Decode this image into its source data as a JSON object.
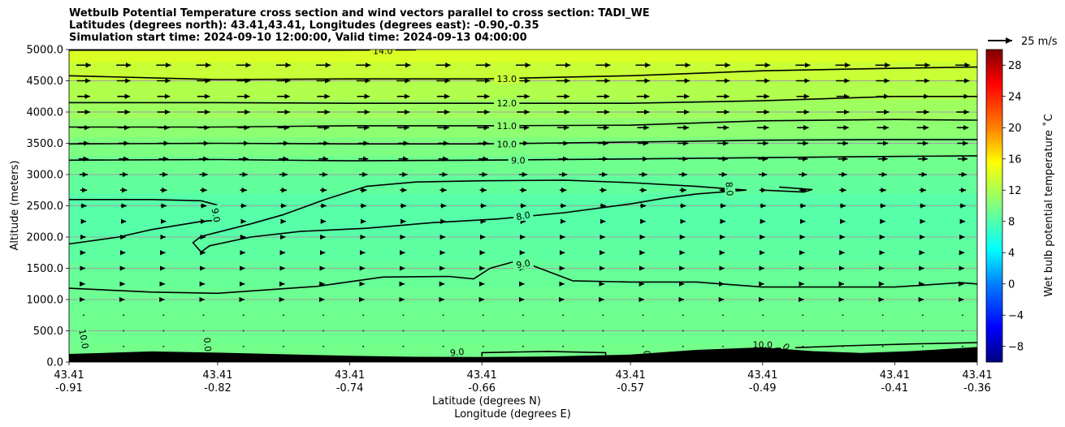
{
  "chart_data": {
    "type": "heatmap",
    "title_lines": [
      "Wetbulb Potential Temperature cross section and wind vectors parallel to cross section: TADI_WE",
      "Latitudes (degrees north): 43.41,43.41, Longitudes (degrees east): -0.90,-0.35",
      "Simulation start time: 2024-09-10 12:00:00, Valid time: 2024-09-13 04:00:00"
    ],
    "xlabel_lat": "Latitude (degrees N)",
    "xlabel_lon": "Longitude (degrees E)",
    "ylabel": "Altitude (meters)",
    "ylim": [
      0,
      5000
    ],
    "yticks": [
      {
        "value": 0,
        "label": "0.0"
      },
      {
        "value": 500,
        "label": "500.0"
      },
      {
        "value": 1000,
        "label": "1000.0"
      },
      {
        "value": 1500,
        "label": "1500.0"
      },
      {
        "value": 2000,
        "label": "2000.0"
      },
      {
        "value": 2500,
        "label": "2500.0"
      },
      {
        "value": 3000,
        "label": "3000.0"
      },
      {
        "value": 3500,
        "label": "3500.0"
      },
      {
        "value": 4000,
        "label": "4000.0"
      },
      {
        "value": 4500,
        "label": "4500.0"
      },
      {
        "value": 5000,
        "label": "5000.0"
      }
    ],
    "xlim": [
      -0.91,
      -0.36
    ],
    "xticks": [
      {
        "lon": -0.91,
        "lat_label": "43.41",
        "lon_label": "-0.91"
      },
      {
        "lon": -0.82,
        "lat_label": "43.41",
        "lon_label": "-0.82"
      },
      {
        "lon": -0.74,
        "lat_label": "43.41",
        "lon_label": "-0.74"
      },
      {
        "lon": -0.66,
        "lat_label": "43.41",
        "lon_label": "-0.66"
      },
      {
        "lon": -0.57,
        "lat_label": "43.41",
        "lon_label": "-0.57"
      },
      {
        "lon": -0.49,
        "lat_label": "43.41",
        "lon_label": "-0.49"
      },
      {
        "lon": -0.41,
        "lat_label": "43.41",
        "lon_label": "-0.41"
      },
      {
        "lon": -0.36,
        "lat_label": "43.41",
        "lon_label": "-0.36"
      }
    ],
    "colorbar": {
      "label": "Wet bulb potential temperature ˚C",
      "range": [
        -10,
        30
      ],
      "ticks": [
        {
          "value": -8,
          "label": "−8"
        },
        {
          "value": -4,
          "label": "−4"
        },
        {
          "value": 0,
          "label": "0"
        },
        {
          "value": 4,
          "label": "4"
        },
        {
          "value": 8,
          "label": "8"
        },
        {
          "value": 12,
          "label": "12"
        },
        {
          "value": 16,
          "label": "16"
        },
        {
          "value": 20,
          "label": "20"
        },
        {
          "value": 24,
          "label": "24"
        },
        {
          "value": 28,
          "label": "28"
        }
      ]
    },
    "quiver_key": {
      "label": "25 m/s",
      "speed": 25
    },
    "background_bands": [
      {
        "z0": 0,
        "z1": 300,
        "theta": 9.5
      },
      {
        "z0": 300,
        "z1": 800,
        "theta": 9.3
      },
      {
        "z0": 800,
        "z1": 1200,
        "theta": 9.2
      },
      {
        "z0": 1200,
        "z1": 1600,
        "theta": 8.9
      },
      {
        "z0": 1600,
        "z1": 2000,
        "theta": 8.5
      },
      {
        "z0": 2000,
        "z1": 2700,
        "theta": 8.2
      },
      {
        "z0": 2700,
        "z1": 3000,
        "theta": 8.7
      },
      {
        "z0": 3000,
        "z1": 3300,
        "theta": 9.3
      },
      {
        "z0": 3300,
        "z1": 3600,
        "theta": 9.9
      },
      {
        "z0": 3600,
        "z1": 3900,
        "theta": 10.6
      },
      {
        "z0": 3900,
        "z1": 4200,
        "theta": 11.4
      },
      {
        "z0": 4200,
        "z1": 4500,
        "theta": 12.2
      },
      {
        "z0": 4500,
        "z1": 4800,
        "theta": 13.2
      },
      {
        "z0": 4800,
        "z1": 5000,
        "theta": 14.0
      }
    ],
    "terrain": [
      [
        -0.91,
        130
      ],
      [
        -0.86,
        170
      ],
      [
        -0.82,
        150
      ],
      [
        -0.78,
        125
      ],
      [
        -0.74,
        100
      ],
      [
        -0.7,
        85
      ],
      [
        -0.66,
        80
      ],
      [
        -0.62,
        90
      ],
      [
        -0.57,
        120
      ],
      [
        -0.53,
        195
      ],
      [
        -0.49,
        235
      ],
      [
        -0.46,
        175
      ],
      [
        -0.43,
        145
      ],
      [
        -0.4,
        175
      ],
      [
        -0.36,
        240
      ]
    ],
    "contours": [
      {
        "level": 14.0,
        "points": [
          [
            -0.91,
            4990
          ],
          [
            -0.75,
            4990
          ],
          [
            -0.7,
            4995
          ]
        ]
      },
      {
        "level": 13.0,
        "points": [
          [
            -0.91,
            4580
          ],
          [
            -0.82,
            4520
          ],
          [
            -0.74,
            4530
          ],
          [
            -0.66,
            4530
          ],
          [
            -0.57,
            4580
          ],
          [
            -0.49,
            4660
          ],
          [
            -0.41,
            4700
          ],
          [
            -0.36,
            4720
          ]
        ]
      },
      {
        "level": 12.0,
        "points": [
          [
            -0.91,
            4150
          ],
          [
            -0.82,
            4150
          ],
          [
            -0.74,
            4140
          ],
          [
            -0.66,
            4140
          ],
          [
            -0.57,
            4140
          ],
          [
            -0.49,
            4180
          ],
          [
            -0.41,
            4250
          ],
          [
            -0.36,
            4250
          ]
        ]
      },
      {
        "level": 11.0,
        "points": [
          [
            -0.91,
            3760
          ],
          [
            -0.82,
            3760
          ],
          [
            -0.74,
            3780
          ],
          [
            -0.66,
            3780
          ],
          [
            -0.57,
            3790
          ],
          [
            -0.49,
            3860
          ],
          [
            -0.41,
            3880
          ],
          [
            -0.36,
            3870
          ]
        ]
      },
      {
        "level": 10.0,
        "points": [
          [
            -0.91,
            3490
          ],
          [
            -0.82,
            3500
          ],
          [
            -0.74,
            3490
          ],
          [
            -0.66,
            3490
          ],
          [
            -0.57,
            3520
          ],
          [
            -0.49,
            3550
          ],
          [
            -0.41,
            3560
          ],
          [
            -0.36,
            3560
          ]
        ]
      },
      {
        "level": 9.0,
        "points": [
          [
            -0.91,
            3230
          ],
          [
            -0.82,
            3240
          ],
          [
            -0.74,
            3220
          ],
          [
            -0.66,
            3230
          ],
          [
            -0.57,
            3250
          ],
          [
            -0.49,
            3270
          ],
          [
            -0.41,
            3290
          ],
          [
            -0.36,
            3300
          ]
        ]
      },
      {
        "level": 9.0,
        "points": [
          [
            -0.91,
            2600
          ],
          [
            -0.86,
            2600
          ],
          [
            -0.83,
            2580
          ],
          [
            -0.82,
            2510
          ]
        ]
      },
      {
        "level": 9.0,
        "points": [
          [
            -0.91,
            1890
          ],
          [
            -0.88,
            2000
          ],
          [
            -0.86,
            2120
          ],
          [
            -0.83,
            2250
          ],
          [
            -0.82,
            2270
          ]
        ]
      },
      {
        "level": 8.0,
        "points": [
          [
            -0.83,
            1760
          ],
          [
            -0.825,
            1860
          ],
          [
            -0.8,
            2000
          ],
          [
            -0.77,
            2090
          ],
          [
            -0.73,
            2140
          ],
          [
            -0.69,
            2230
          ],
          [
            -0.65,
            2290
          ],
          [
            -0.61,
            2390
          ],
          [
            -0.57,
            2530
          ],
          [
            -0.55,
            2620
          ],
          [
            -0.53,
            2690
          ],
          [
            -0.5,
            2750
          ],
          [
            -0.53,
            2810
          ],
          [
            -0.57,
            2870
          ],
          [
            -0.61,
            2910
          ],
          [
            -0.66,
            2900
          ],
          [
            -0.7,
            2880
          ],
          [
            -0.73,
            2810
          ],
          [
            -0.755,
            2600
          ],
          [
            -0.78,
            2360
          ],
          [
            -0.8,
            2210
          ],
          [
            -0.83,
            2010
          ],
          [
            -0.835,
            1910
          ],
          [
            -0.83,
            1760
          ]
        ]
      },
      {
        "level": 8.0,
        "points": [
          [
            -0.48,
            2800
          ],
          [
            -0.46,
            2760
          ],
          [
            -0.465,
            2720
          ],
          [
            -0.49,
            2750
          ]
        ]
      },
      {
        "level": 9.0,
        "points": [
          [
            -0.91,
            1180
          ],
          [
            -0.86,
            1120
          ],
          [
            -0.82,
            1100
          ],
          [
            -0.76,
            1210
          ],
          [
            -0.72,
            1360
          ],
          [
            -0.68,
            1370
          ],
          [
            -0.665,
            1330
          ],
          [
            -0.655,
            1500
          ],
          [
            -0.64,
            1610
          ],
          [
            -0.63,
            1550
          ],
          [
            -0.605,
            1300
          ],
          [
            -0.57,
            1280
          ],
          [
            -0.53,
            1280
          ],
          [
            -0.49,
            1200
          ],
          [
            -0.45,
            1200
          ],
          [
            -0.41,
            1200
          ],
          [
            -0.37,
            1270
          ],
          [
            -0.36,
            1250
          ]
        ]
      },
      {
        "level": 9.0,
        "points": [
          [
            -0.66,
            90
          ],
          [
            -0.66,
            150
          ],
          [
            -0.62,
            170
          ],
          [
            -0.585,
            150
          ],
          [
            -0.585,
            90
          ]
        ]
      },
      {
        "level": 10.0,
        "points": [
          [
            -0.49,
            210
          ],
          [
            -0.47,
            230
          ],
          [
            -0.44,
            260
          ],
          [
            -0.4,
            290
          ],
          [
            -0.36,
            310
          ]
        ]
      }
    ],
    "contour_labels": [
      {
        "text": "14.0",
        "lon": -0.72,
        "z": 4980,
        "angle": 0
      },
      {
        "text": "13.0",
        "lon": -0.645,
        "z": 4530,
        "angle": 0
      },
      {
        "text": "12.0",
        "lon": -0.645,
        "z": 4140,
        "angle": 0
      },
      {
        "text": "11.0",
        "lon": -0.645,
        "z": 3780,
        "angle": 0
      },
      {
        "text": "10.0",
        "lon": -0.645,
        "z": 3490,
        "angle": 0
      },
      {
        "text": "9.0",
        "lon": -0.638,
        "z": 3230,
        "angle": 0
      },
      {
        "text": "9.0",
        "lon": -0.821,
        "z": 2350,
        "angle": 80
      },
      {
        "text": "8.0",
        "lon": -0.635,
        "z": 2340,
        "angle": -10
      },
      {
        "text": "8.0",
        "lon": -0.51,
        "z": 2770,
        "angle": 85
      },
      {
        "text": "9.0",
        "lon": -0.635,
        "z": 1570,
        "angle": -10
      },
      {
        "text": "10.0",
        "lon": -0.901,
        "z": 370,
        "angle": 80
      },
      {
        "text": "0.0",
        "lon": -0.826,
        "z": 280,
        "angle": 85
      },
      {
        "text": "9.0",
        "lon": -0.675,
        "z": 160,
        "angle": -5
      },
      {
        "text": "10.0",
        "lon": -0.49,
        "z": 280,
        "angle": 0
      },
      {
        "text": "0.",
        "lon": -0.475,
        "z": 230,
        "angle": 45
      },
      {
        "text": "0",
        "lon": -0.56,
        "z": 140,
        "angle": 85
      }
    ],
    "wind_rows": [
      {
        "z": 4750,
        "u": 15
      },
      {
        "z": 4500,
        "u": 14
      },
      {
        "z": 4250,
        "u": 13
      },
      {
        "z": 4000,
        "u": 13
      },
      {
        "z": 3750,
        "u": 12
      },
      {
        "z": 3500,
        "u": 11
      },
      {
        "z": 3250,
        "u": 10
      },
      {
        "z": 3000,
        "u": 8.5
      },
      {
        "z": 2750,
        "u": 7
      },
      {
        "z": 2500,
        "u": 6
      },
      {
        "z": 2250,
        "u": 5
      },
      {
        "z": 2000,
        "u": 4
      },
      {
        "z": 1750,
        "u": 3.5
      },
      {
        "z": 1500,
        "u": 3
      },
      {
        "z": 1250,
        "u": 2.5
      },
      {
        "z": 1000,
        "u": 2
      },
      {
        "z": 750,
        "u": 1.2
      },
      {
        "z": 500,
        "u": 0.6
      },
      {
        "z": 250,
        "u": 0.4
      }
    ],
    "wind_columns": 23,
    "grid": true
  }
}
